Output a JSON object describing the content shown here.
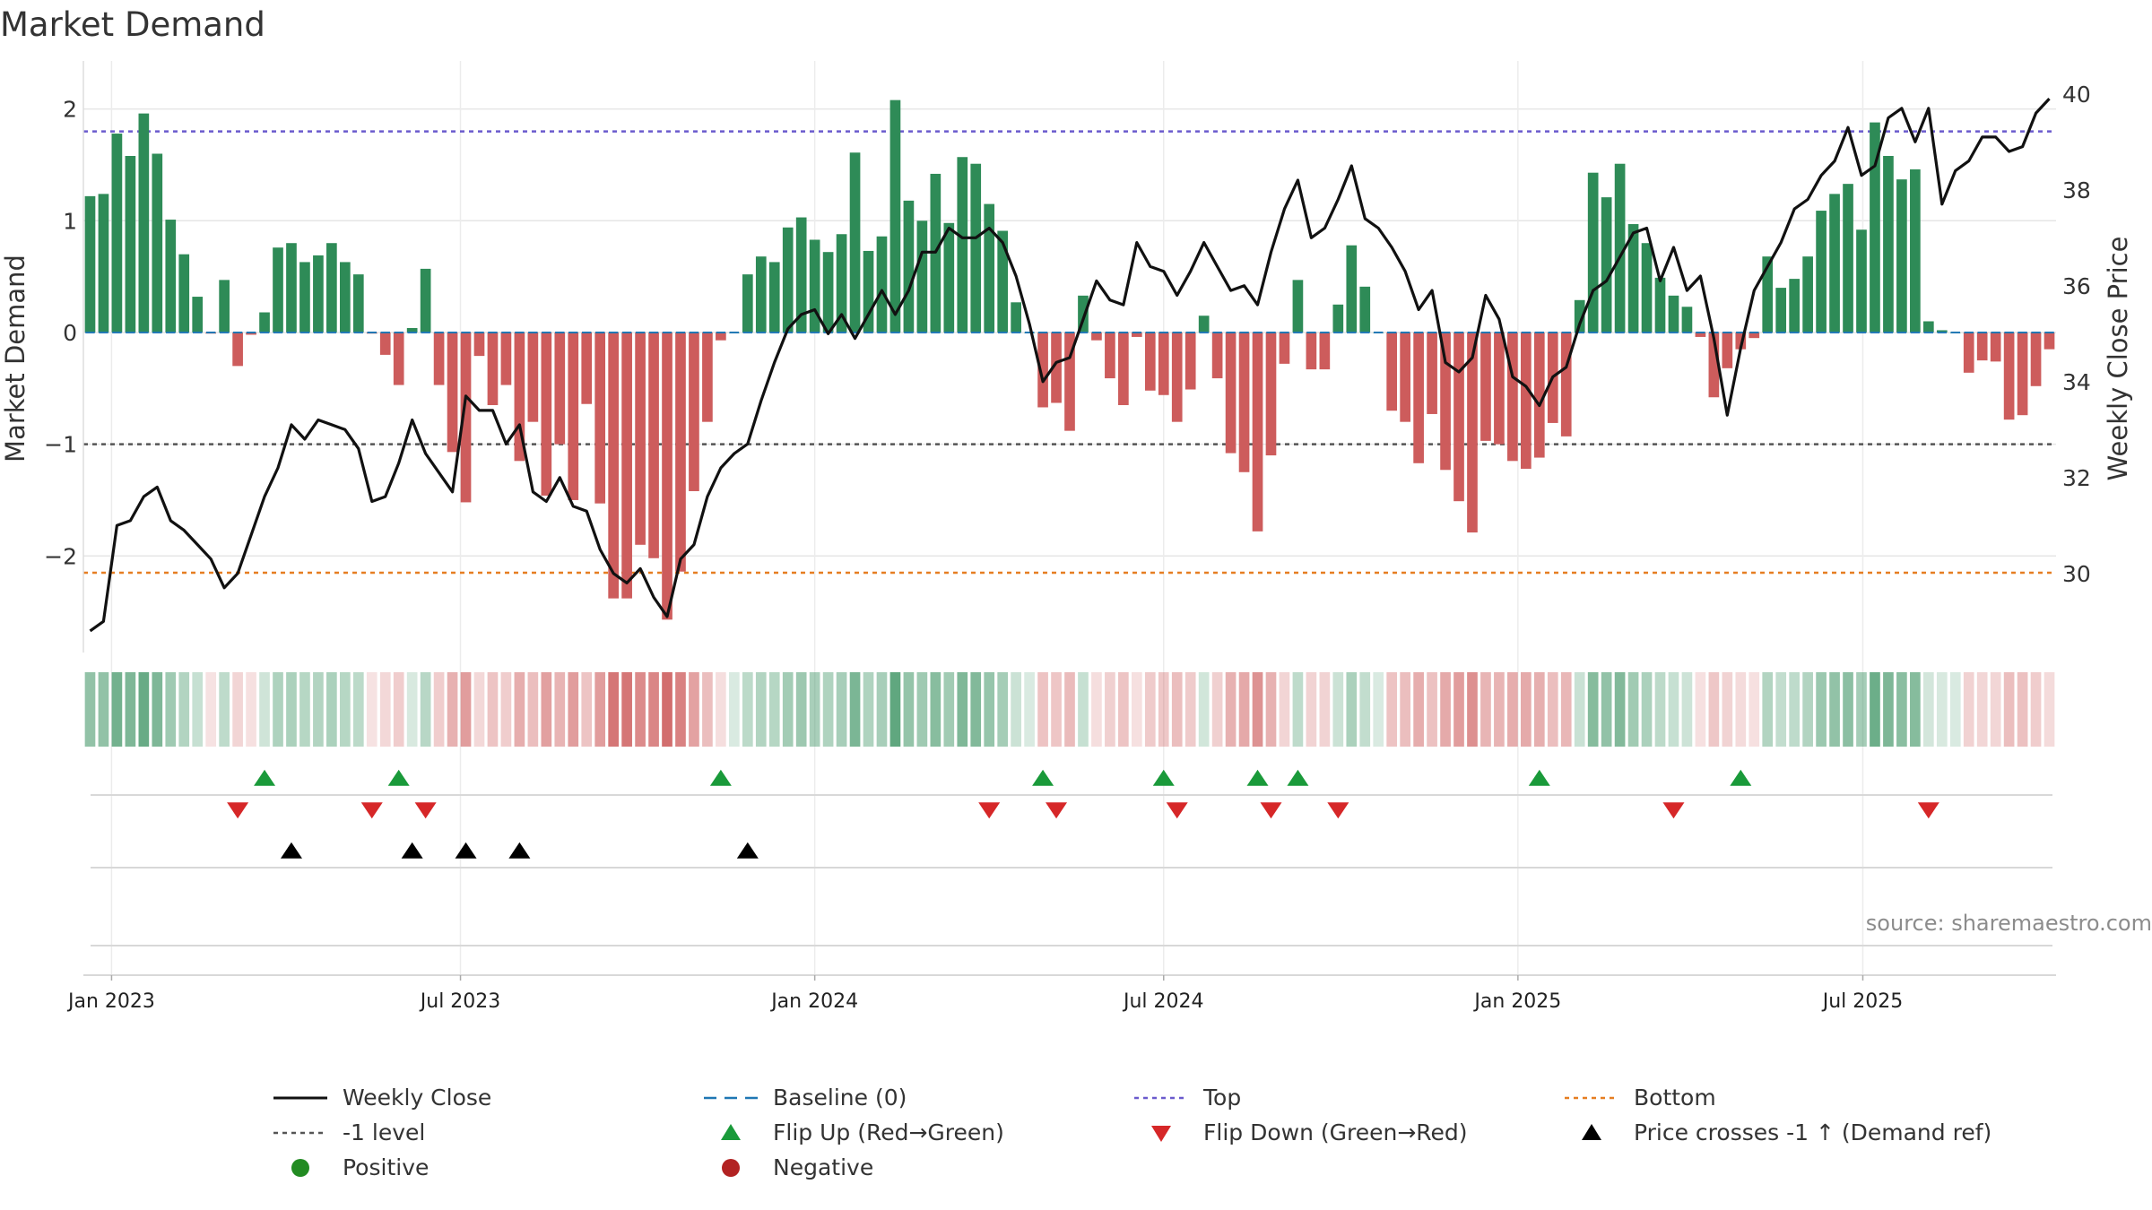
{
  "title": "Market Demand",
  "source": "source: sharemaestro.com",
  "colors": {
    "positive": "#2e8b57",
    "negative": "#cd5c5c",
    "close": "#111111",
    "baseline": "#1f77b4",
    "top": "#6a5acd",
    "bottom": "#e67e22",
    "minus1": "#555555",
    "flip_up": "#1a9a3a",
    "flip_down": "#d62728",
    "cross": "#000000",
    "pos_dot": "#228b22",
    "neg_dot": "#b22222"
  },
  "chart_data": {
    "type": "bar",
    "title": "Market Demand",
    "ylabel": "Market Demand",
    "y2label": "Weekly Close Price",
    "ylim": [
      -2.8,
      2.35
    ],
    "y2lim": [
      28.5,
      40.5
    ],
    "yticks": [
      2,
      1,
      0,
      -1,
      -2
    ],
    "ytick_labels": [
      "2",
      "1",
      "0",
      "−1",
      "−2"
    ],
    "y2ticks": [
      40,
      38,
      36,
      34,
      32,
      30
    ],
    "y2tick_labels": [
      "40",
      "38",
      "36",
      "34",
      "32",
      "30"
    ],
    "xtick_labels": [
      "Jan 2023",
      "Jul 2023",
      "Jan 2024",
      "Jul 2024",
      "Jan 2025",
      "Jul 2025"
    ],
    "xtick_weeks": [
      1.6,
      27.6,
      54,
      80,
      106.4,
      132.1
    ],
    "reference_lines": {
      "top": 1.8,
      "bottom": -2.15,
      "minus1": -1,
      "baseline": 0
    },
    "demand": [
      1.22,
      1.24,
      1.78,
      1.58,
      1.96,
      1.6,
      1.01,
      0.7,
      0.32,
      -0.01,
      0.47,
      -0.3,
      -0.02,
      0.18,
      0.76,
      0.8,
      0.63,
      0.69,
      0.8,
      0.63,
      0.52,
      -0.01,
      -0.2,
      -0.47,
      0.04,
      0.57,
      -0.47,
      -1.07,
      -1.52,
      -0.21,
      -0.65,
      -0.47,
      -1.15,
      -0.8,
      -1.46,
      -1.0,
      -1.5,
      -0.64,
      -1.53,
      -2.38,
      -2.38,
      -1.9,
      -2.02,
      -2.57,
      -2.14,
      -1.42,
      -0.8,
      -0.07,
      0.0,
      0.52,
      0.68,
      0.63,
      0.94,
      1.03,
      0.83,
      0.72,
      0.88,
      1.61,
      0.73,
      0.86,
      2.08,
      1.18,
      1.0,
      1.42,
      0.98,
      1.57,
      1.51,
      1.15,
      0.91,
      0.27,
      0.0,
      -0.67,
      -0.63,
      -0.88,
      0.33,
      -0.07,
      -0.41,
      -0.65,
      -0.04,
      -0.52,
      -0.56,
      -0.8,
      -0.51,
      0.15,
      -0.41,
      -1.08,
      -1.25,
      -1.78,
      -1.1,
      -0.28,
      0.47,
      -0.33,
      -0.33,
      0.25,
      0.78,
      0.41,
      0.0,
      -0.7,
      -0.8,
      -1.17,
      -0.73,
      -1.23,
      -1.51,
      -1.79,
      -0.97,
      -1.0,
      -1.15,
      -1.22,
      -1.12,
      -0.81,
      -0.93,
      0.29,
      1.43,
      1.21,
      1.51,
      0.97,
      0.8,
      0.49,
      0.33,
      0.23,
      -0.04,
      -0.58,
      -0.32,
      -0.15,
      -0.05,
      0.68,
      0.4,
      0.48,
      0.68,
      1.09,
      1.24,
      1.33,
      0.92,
      1.88,
      1.58,
      1.37,
      1.46,
      0.1,
      0.02,
      0.0,
      -0.36,
      -0.25,
      -0.26,
      -0.78,
      -0.74,
      -0.48,
      -0.15
    ],
    "close": [
      28.8,
      29.0,
      31.0,
      31.1,
      31.6,
      31.8,
      31.1,
      30.9,
      30.6,
      30.3,
      29.7,
      30.0,
      30.8,
      31.6,
      32.2,
      33.1,
      32.8,
      33.2,
      33.1,
      33.0,
      32.6,
      31.5,
      31.6,
      32.3,
      33.2,
      32.5,
      32.1,
      31.7,
      33.7,
      33.4,
      33.4,
      32.7,
      33.1,
      31.7,
      31.5,
      32.0,
      31.4,
      31.3,
      30.5,
      30.0,
      29.8,
      30.1,
      29.5,
      29.1,
      30.3,
      30.6,
      31.6,
      32.2,
      32.5,
      32.7,
      33.6,
      34.4,
      35.1,
      35.4,
      35.5,
      35.0,
      35.4,
      34.9,
      35.4,
      35.9,
      35.4,
      35.9,
      36.7,
      36.7,
      37.2,
      37.0,
      37.0,
      37.2,
      36.9,
      36.2,
      35.2,
      34.0,
      34.4,
      34.5,
      35.3,
      36.1,
      35.7,
      35.6,
      36.9,
      36.4,
      36.3,
      35.8,
      36.3,
      36.9,
      36.4,
      35.9,
      36.0,
      35.6,
      36.7,
      37.6,
      38.2,
      37.0,
      37.2,
      37.8,
      38.5,
      37.4,
      37.2,
      36.8,
      36.3,
      35.5,
      35.9,
      34.4,
      34.2,
      34.5,
      35.8,
      35.3,
      34.1,
      33.9,
      33.5,
      34.1,
      34.3,
      35.2,
      35.9,
      36.1,
      36.6,
      37.1,
      37.2,
      36.1,
      36.8,
      35.9,
      36.2,
      34.9,
      33.3,
      34.7,
      35.9,
      36.4,
      36.9,
      37.6,
      37.8,
      38.3,
      38.6,
      39.3,
      38.3,
      38.5,
      39.5,
      39.7,
      39.0,
      39.7,
      37.7,
      38.4,
      38.6,
      39.1,
      39.1,
      38.8,
      38.9,
      39.6,
      39.9
    ],
    "flip_up_weeks": [
      13,
      23,
      47,
      71,
      80,
      87,
      90,
      108,
      123
    ],
    "flip_down_weeks": [
      11,
      21,
      25,
      67,
      72,
      81,
      88,
      93,
      118,
      137
    ],
    "price_cross_weeks": [
      15,
      24,
      28,
      32,
      49
    ]
  },
  "legend": [
    {
      "key": "close",
      "label": "Weekly Close",
      "symbol": "line-solid"
    },
    {
      "key": "baseline",
      "label": "Baseline (0)",
      "symbol": "line-dash"
    },
    {
      "key": "top",
      "label": "Top",
      "symbol": "line-dot"
    },
    {
      "key": "bottom",
      "label": "Bottom",
      "symbol": "line-dot"
    },
    {
      "key": "minus1",
      "label": "-1 level",
      "symbol": "line-dot"
    },
    {
      "key": "flip_up",
      "label": "Flip Up (Red→Green)",
      "symbol": "tri-up"
    },
    {
      "key": "flip_down",
      "label": "Flip Down (Green→Red)",
      "symbol": "tri-down"
    },
    {
      "key": "cross",
      "label": "Price crosses -1 ↑ (Demand ref)",
      "symbol": "tri-up"
    },
    {
      "key": "pos_dot",
      "label": "Positive",
      "symbol": "dot"
    },
    {
      "key": "neg_dot",
      "label": "Negative",
      "symbol": "dot"
    }
  ]
}
